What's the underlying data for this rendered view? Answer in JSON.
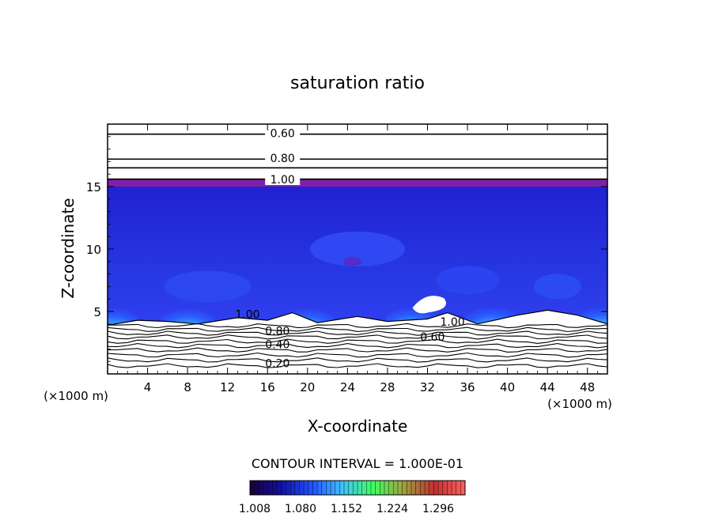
{
  "chart_data": {
    "type": "heatmap",
    "title": "saturation ratio",
    "xlabel": "X-coordinate",
    "ylabel": "Z-coordinate",
    "x_unit": "(×1000 m)",
    "y_unit": "(×1000 m)",
    "xlim": [
      0,
      50
    ],
    "ylim": [
      0,
      20
    ],
    "x_ticks": [
      4,
      8,
      12,
      16,
      20,
      24,
      28,
      32,
      36,
      40,
      44,
      48
    ],
    "y_ticks": [
      5,
      10,
      15
    ],
    "contour_interval_text": "CONTOUR INTERVAL = 1.000E-01",
    "contour_labels": [
      {
        "text": "0.60",
        "x": 17.5,
        "y": 19.2
      },
      {
        "text": "0.80",
        "x": 17.5,
        "y": 17.2
      },
      {
        "text": "1.00",
        "x": 17.5,
        "y": 15.5
      },
      {
        "text": "1.00",
        "x": 14.0,
        "y": 4.7
      },
      {
        "text": "0.80",
        "x": 17.0,
        "y": 3.4
      },
      {
        "text": "0.40",
        "x": 17.0,
        "y": 2.3
      },
      {
        "text": "0.20",
        "x": 17.0,
        "y": 0.8
      },
      {
        "text": "1.00",
        "x": 34.5,
        "y": 4.1
      },
      {
        "text": "0.60",
        "x": 32.5,
        "y": 2.9
      }
    ],
    "colorbar": {
      "min": 1.0,
      "max": 1.35,
      "labels": [
        "1.008",
        "1.080",
        "1.152",
        "1.224",
        "1.296"
      ],
      "colors": [
        "#1a003a",
        "#1010a0",
        "#2050ff",
        "#40c0ff",
        "#40ff60",
        "#a0a040",
        "#c03030",
        "#ff6060"
      ]
    },
    "field_colors": [
      "#2222d8",
      "#2840ee",
      "#3c5cff"
    ],
    "tropopause_color": "#8020a8",
    "subsaturated_color": "#ffffff",
    "cloud_bases_km": [
      4.3,
      4.3,
      4.3,
      4.4,
      4.4,
      4.4
    ],
    "cloud_centers_km": [
      0.5,
      8.0,
      20.0,
      30.5,
      38.5,
      49.5
    ]
  }
}
